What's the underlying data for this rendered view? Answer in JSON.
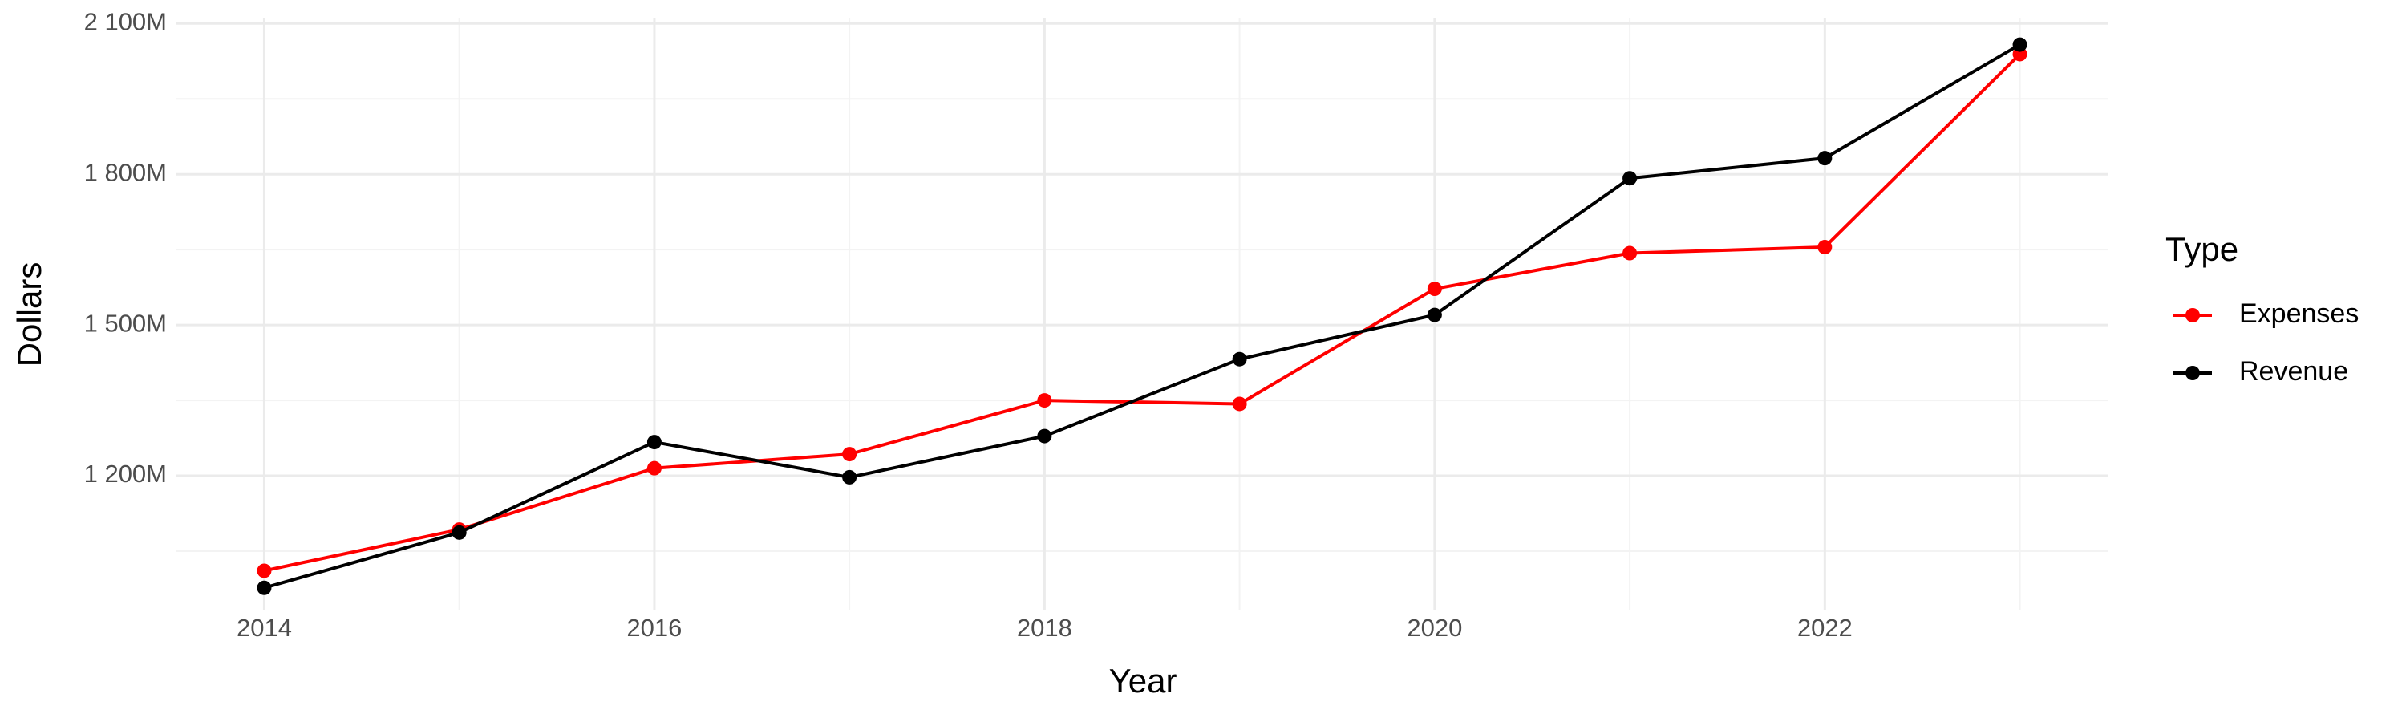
{
  "chart_data": {
    "type": "line",
    "x_label": "Year",
    "y_label": "Dollars",
    "legend_title": "Type",
    "legend_position": "right",
    "x": [
      2014,
      2015,
      2016,
      2017,
      2018,
      2019,
      2020,
      2021,
      2022,
      2023
    ],
    "series": [
      {
        "name": "Expenses",
        "color": "#ff0000",
        "values": [
          1011000000,
          1093000000,
          1215000000,
          1243000000,
          1350000000,
          1343000000,
          1572000000,
          1643000000,
          1655000000,
          2039000000
        ]
      },
      {
        "name": "Revenue",
        "color": "#000000",
        "values": [
          977000000,
          1087000000,
          1267000000,
          1197000000,
          1279000000,
          1432000000,
          1520000000,
          1792000000,
          1832000000,
          2058000000
        ]
      }
    ],
    "xlim": [
      2013.55,
      2023.45
    ],
    "xticks": [
      2014,
      2016,
      2018,
      2020,
      2022
    ],
    "ylim": [
      933500000,
      2110000000
    ],
    "yticks": [
      {
        "value": 1200000000,
        "label": "1 200M"
      },
      {
        "value": 1500000000,
        "label": "1 500M"
      },
      {
        "value": 1800000000,
        "label": "1 800M"
      },
      {
        "value": 2100000000,
        "label": "2 100M"
      }
    ],
    "grid": true
  }
}
